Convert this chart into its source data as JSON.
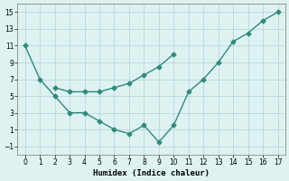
{
  "line1_x": [
    0,
    1,
    2,
    3,
    4,
    5,
    6,
    7,
    8,
    9,
    10,
    11,
    12,
    13,
    14,
    15,
    16,
    17
  ],
  "line1_y": [
    11,
    7,
    5,
    3,
    3,
    2,
    1,
    0.5,
    1.5,
    -0.5,
    1.5,
    5.5,
    7,
    9,
    11.5,
    12.5,
    14,
    15
  ],
  "line2_x": [
    2,
    3,
    4,
    5,
    6,
    7,
    8,
    9,
    10
  ],
  "line2_y": [
    6,
    5.5,
    5.5,
    5.5,
    6,
    6.5,
    7.5,
    8.5,
    10
  ],
  "line_color": "#2e8b7a",
  "bg_color": "#dff2f2",
  "grid_color": "#b8d8d8",
  "xlabel": "Humidex (Indice chaleur)",
  "xlim": [
    -0.5,
    17.5
  ],
  "ylim": [
    -2,
    16
  ],
  "xticks": [
    0,
    1,
    2,
    3,
    4,
    5,
    6,
    7,
    8,
    9,
    10,
    11,
    12,
    13,
    14,
    15,
    16,
    17
  ],
  "yticks": [
    -1,
    1,
    3,
    5,
    7,
    9,
    11,
    13,
    15
  ],
  "marker": "D",
  "markersize": 2.5,
  "linewidth": 1.0
}
